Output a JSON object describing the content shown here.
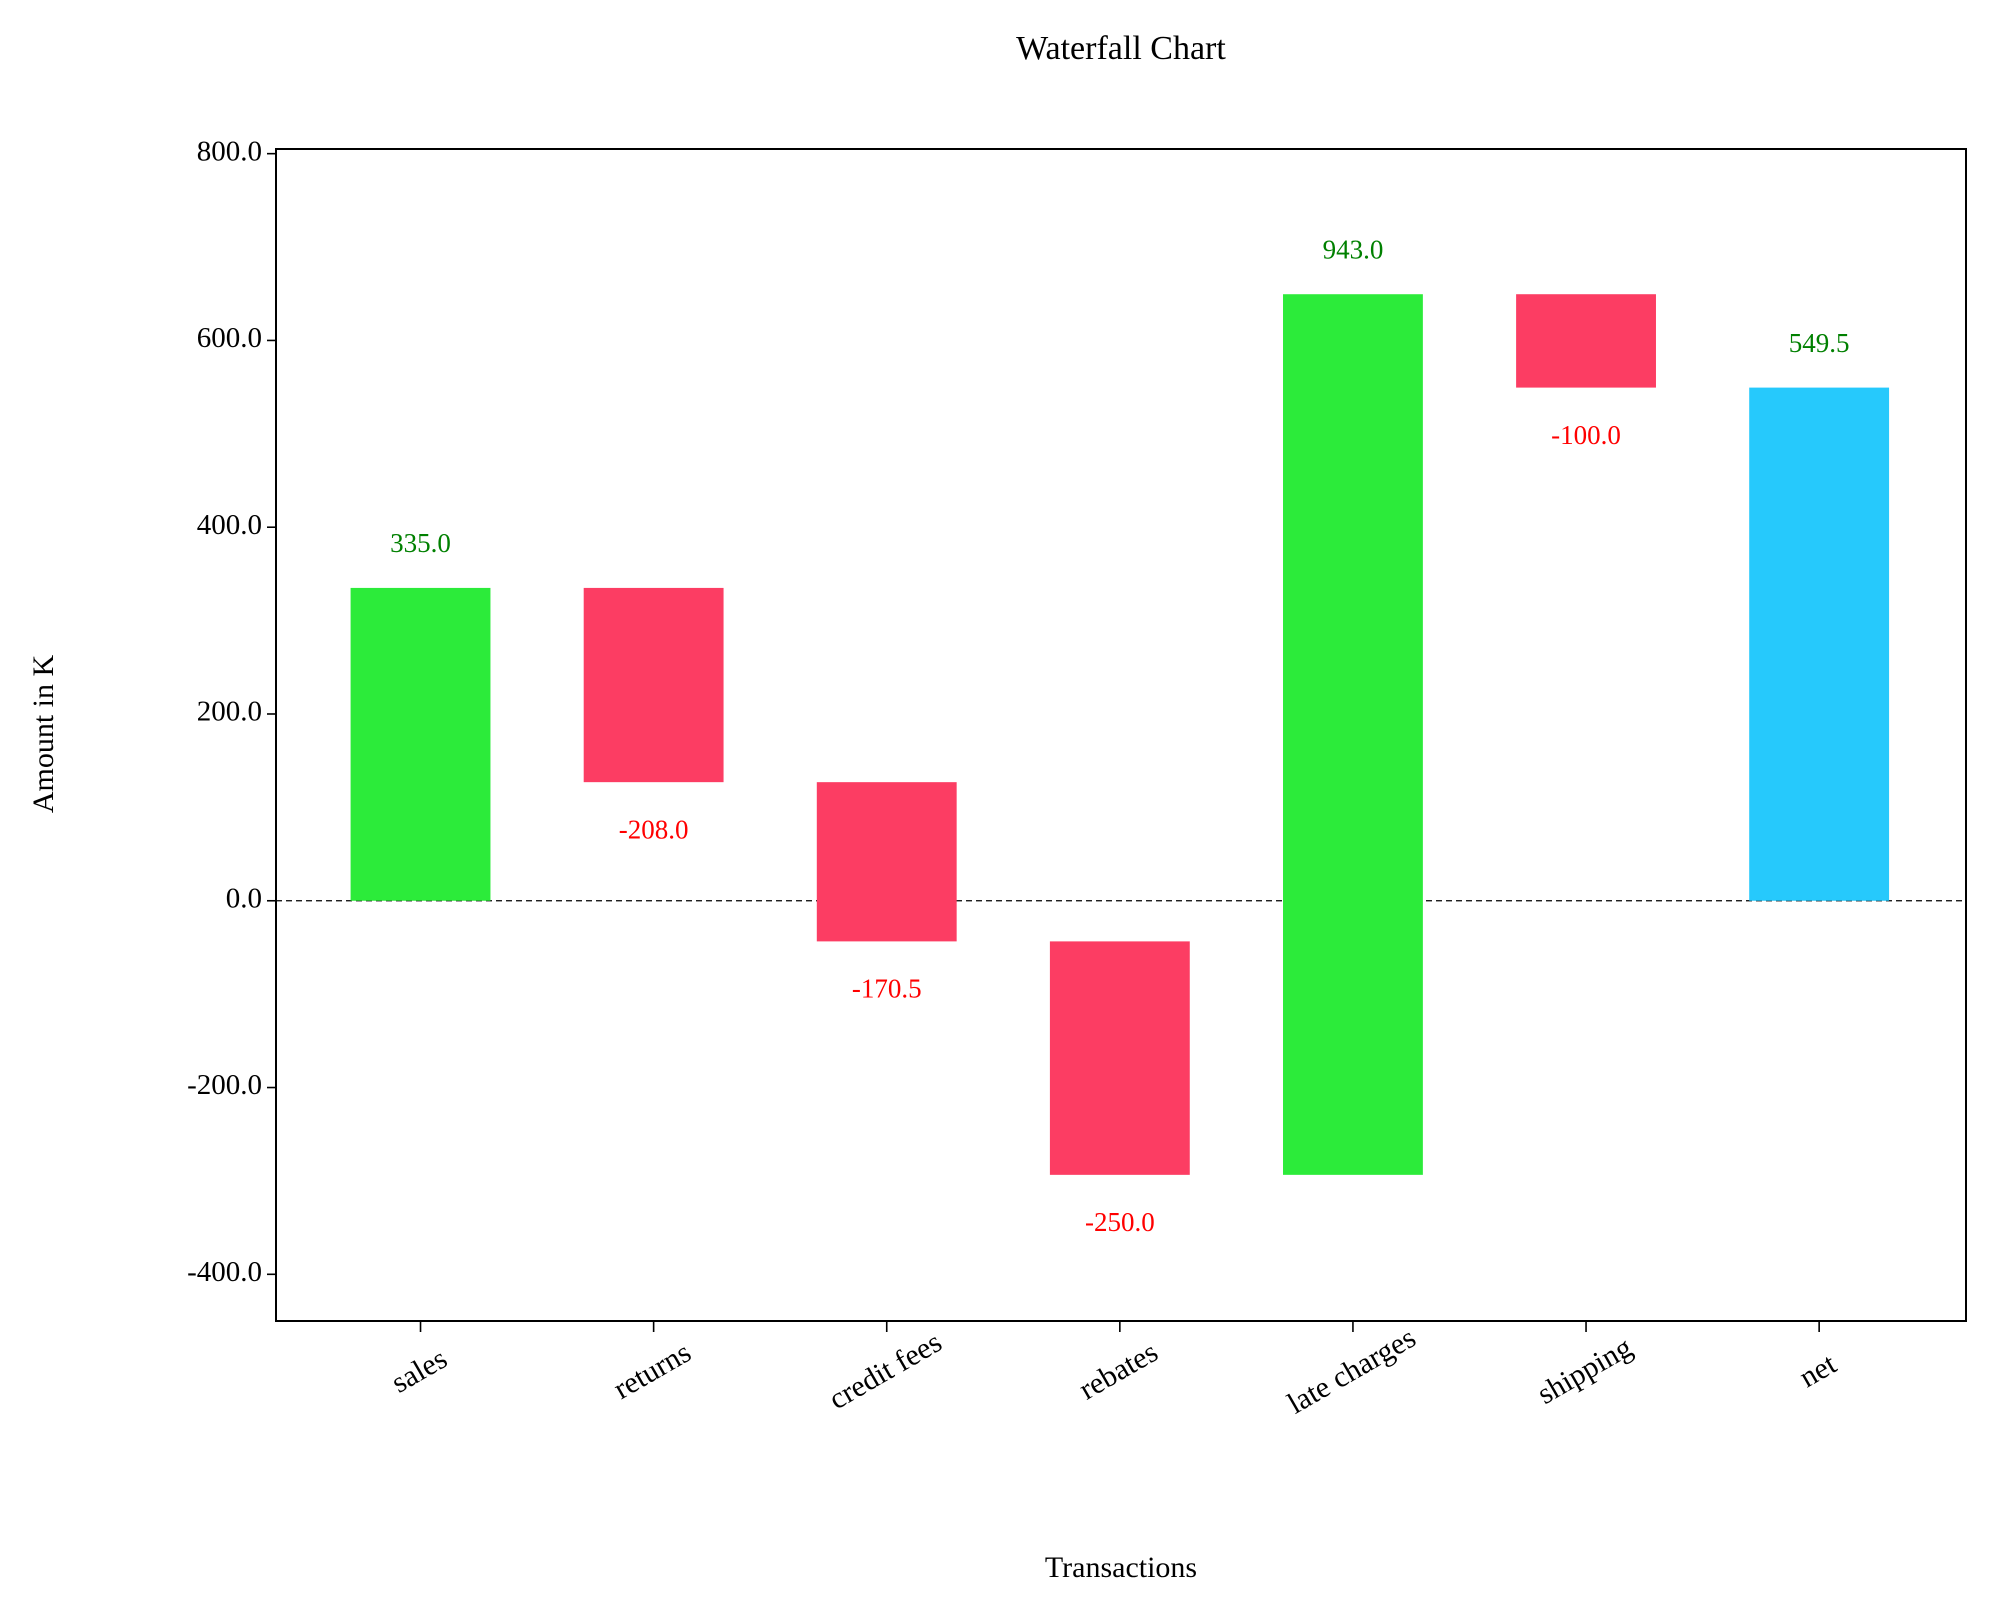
{
  "chart_data": {
    "type": "waterfall",
    "title": "Waterfall Chart",
    "x_label": "Transactions",
    "y_label": "Amount in K",
    "categories": [
      "sales",
      "returns",
      "credit fees",
      "rebates",
      "late charges",
      "shipping",
      "net"
    ],
    "values": [
      335,
      -208,
      -170.5,
      -250,
      943,
      -100,
      549.5
    ],
    "value_labels": [
      "335.0",
      "-208.0",
      "-170.5",
      "-250.0",
      "943.0",
      "-100.0",
      "549.5"
    ],
    "measure": [
      "relative",
      "relative",
      "relative",
      "relative",
      "relative",
      "relative",
      "total"
    ],
    "colors": {
      "increase": "#2ceb3a",
      "decrease": "#fc3d63",
      "total": "#26c9fc"
    },
    "label_colors": {
      "increase": "#008000",
      "decrease": "#ff0000",
      "total": "#008000"
    },
    "ylim": [
      -450,
      805
    ],
    "yticks": [
      {
        "value": -400,
        "label": "-400.0"
      },
      {
        "value": -200,
        "label": "-200.0"
      },
      {
        "value": 0,
        "label": "0.0"
      },
      {
        "value": 200,
        "label": "200.0"
      },
      {
        "value": 400,
        "label": "400.0"
      },
      {
        "value": 600,
        "label": "600.0"
      },
      {
        "value": 800,
        "label": "800.0"
      }
    ],
    "zero_line": true
  }
}
